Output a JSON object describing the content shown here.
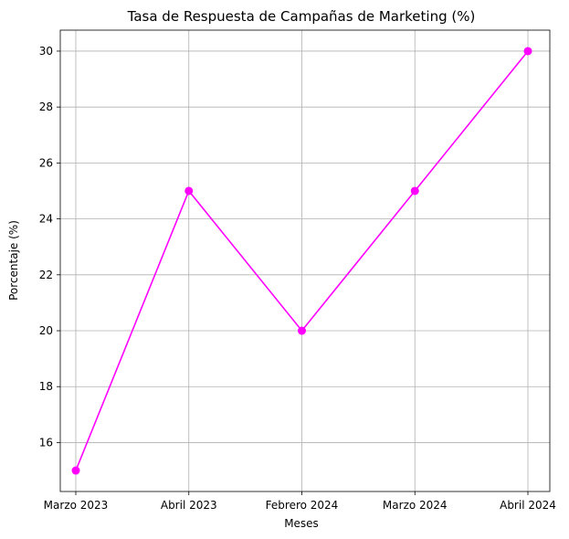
{
  "chart_data": {
    "type": "line",
    "title": "Tasa de Respuesta de Campañas de Marketing (%)",
    "xlabel": "Meses",
    "ylabel": "Porcentaje (%)",
    "categories": [
      "Marzo 2023",
      "Abril 2023",
      "Febrero 2024",
      "Marzo 2024",
      "Abril 2024"
    ],
    "series": [
      {
        "values": [
          15,
          25,
          20,
          25,
          30
        ],
        "color": "#ff00ff",
        "marker": "circle"
      }
    ],
    "ylim": [
      14.25,
      30.75
    ],
    "yticks": [
      16,
      18,
      20,
      22,
      24,
      26,
      28,
      30
    ],
    "grid": true,
    "legend": "none"
  }
}
